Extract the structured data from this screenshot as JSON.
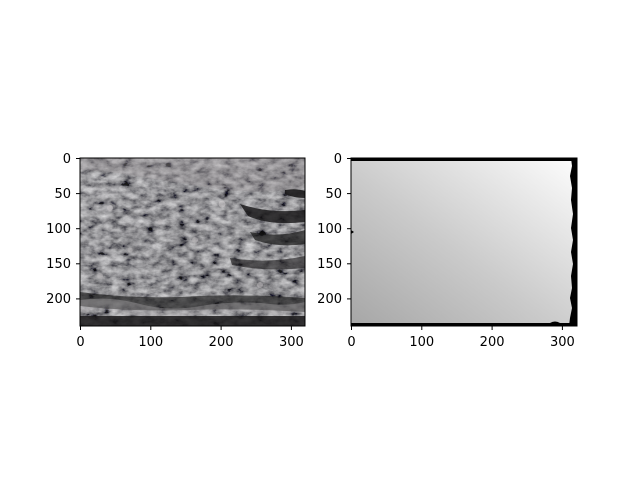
{
  "panels": [
    {
      "kind": "photo",
      "subject": "rocky-terrain-photo",
      "x_ticks": [
        "0",
        "100",
        "200",
        "300"
      ],
      "y_ticks": [
        "0",
        "50",
        "100",
        "150",
        "200"
      ]
    },
    {
      "kind": "depth-map",
      "subject": "grayscale-depth-map",
      "x_ticks": [
        "0",
        "100",
        "200",
        "300"
      ],
      "y_ticks": [
        "0",
        "50",
        "100",
        "150",
        "200"
      ]
    }
  ],
  "colors": {
    "background": "#ffffff",
    "axis": "#000000",
    "photo_dark": "#1e1d1f",
    "photo_light": "#8a8688",
    "depth_dark": "#a8a8a8",
    "depth_light": "#fbfbfb"
  }
}
